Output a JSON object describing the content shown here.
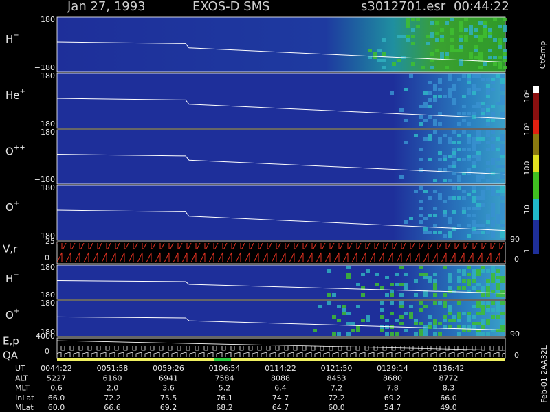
{
  "header": {
    "date": "Jan 27, 1993",
    "instrument": "EXOS-D SMS",
    "file": "s3012701.esr",
    "time": "00:44:22"
  },
  "panels": [
    {
      "label": "H",
      "sup": "+",
      "ymax": "180",
      "ymin": "−180"
    },
    {
      "label": "He",
      "sup": "+",
      "ymax": "180",
      "ymin": "−180"
    },
    {
      "label": "O",
      "sup": "++",
      "ymax": "180",
      "ymin": "−180"
    },
    {
      "label": "O",
      "sup": "+",
      "ymax": "180",
      "ymin": "−180"
    },
    {
      "label": "H",
      "sup": "+",
      "ymax": "180",
      "ymin": "−180"
    },
    {
      "label": "O",
      "sup": "+",
      "ymax": "180",
      "ymin": "−180"
    }
  ],
  "velocity_panel": {
    "label": "V,r",
    "ymax": "25",
    "ymin": "0",
    "right_max": "90",
    "right_min": "0"
  },
  "energy_panel": {
    "label": "E,p",
    "qa_label": "QA",
    "ymax": "4000",
    "ymin": "0",
    "right_max": "90",
    "right_min": "0"
  },
  "colorbar": {
    "unit": "Ct/Smp",
    "ticks": [
      "10⁴",
      "10³",
      "100",
      "10",
      "1"
    ]
  },
  "table": {
    "rows": [
      [
        "UT",
        "0044:22",
        "0051:58",
        "0059:26",
        "0106:54",
        "0114:22",
        "0121:50",
        "0129:14",
        "0136:42"
      ],
      [
        "ALT",
        "5227",
        "6160",
        "6941",
        "7584",
        "8088",
        "8453",
        "8680",
        "8772"
      ],
      [
        "MLT",
        "0.6",
        "2.0",
        "3.6",
        "5.2",
        "6.4",
        "7.2",
        "7.8",
        "8.3"
      ],
      [
        "InLat",
        "66.0",
        "72.2",
        "75.5",
        "76.1",
        "74.7",
        "72.2",
        "69.2",
        "66.0"
      ],
      [
        "MLat",
        "60.0",
        "66.6",
        "69.2",
        "68.2",
        "64.7",
        "60.0",
        "54.7",
        "49.0"
      ]
    ]
  },
  "side_label": "Feb-01 2AA32L"
}
